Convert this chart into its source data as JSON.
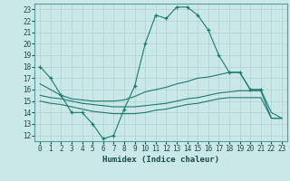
{
  "title": "",
  "xlabel": "Humidex (Indice chaleur)",
  "ylabel": "",
  "bg_color": "#cbe8e8",
  "plot_bg_color": "#cbe8e8",
  "line_color": "#1a7a6e",
  "grid_color": "#b0d0d0",
  "ylim": [
    11.5,
    23.5
  ],
  "xlim": [
    -0.5,
    23.5
  ],
  "yticks": [
    12,
    13,
    14,
    15,
    16,
    17,
    18,
    19,
    20,
    21,
    22,
    23
  ],
  "xticks": [
    0,
    1,
    2,
    3,
    4,
    5,
    6,
    7,
    8,
    9,
    10,
    11,
    12,
    13,
    14,
    15,
    16,
    17,
    18,
    19,
    20,
    21,
    22,
    23
  ],
  "lines": [
    {
      "x": [
        0,
        1,
        2,
        3,
        4,
        5,
        6,
        7,
        8,
        9,
        10,
        11,
        12,
        13,
        14,
        15,
        16,
        17,
        18,
        19,
        20,
        21
      ],
      "y": [
        18,
        17,
        15.5,
        14,
        14,
        13,
        11.7,
        12,
        14.3,
        16.3,
        20,
        22.5,
        22.2,
        23.2,
        23.2,
        22.5,
        21.2,
        19.0,
        17.5,
        17.5,
        16.0,
        16.0
      ],
      "marker": true
    },
    {
      "x": [
        0,
        1,
        2,
        3,
        4,
        5,
        6,
        7,
        8,
        9,
        10,
        11,
        12,
        13,
        14,
        15,
        16,
        17,
        18,
        19,
        20,
        21,
        22,
        23
      ],
      "y": [
        16.5,
        16.0,
        15.5,
        15.2,
        15.1,
        15.0,
        15.0,
        15.0,
        15.1,
        15.4,
        15.8,
        16.0,
        16.2,
        16.5,
        16.7,
        17.0,
        17.1,
        17.3,
        17.5,
        17.5,
        16.0,
        16.0,
        14.0,
        13.5
      ],
      "marker": false
    },
    {
      "x": [
        0,
        1,
        2,
        3,
        4,
        5,
        6,
        7,
        8,
        9,
        10,
        11,
        12,
        13,
        14,
        15,
        16,
        17,
        18,
        19,
        20,
        21,
        22,
        23
      ],
      "y": [
        15.5,
        15.3,
        15.2,
        15.0,
        14.8,
        14.7,
        14.6,
        14.5,
        14.5,
        14.5,
        14.6,
        14.7,
        14.8,
        15.0,
        15.2,
        15.3,
        15.5,
        15.7,
        15.8,
        15.9,
        15.9,
        15.9,
        13.5,
        13.5
      ],
      "marker": false
    },
    {
      "x": [
        0,
        1,
        2,
        3,
        4,
        5,
        6,
        7,
        8,
        9,
        10,
        11,
        12,
        13,
        14,
        15,
        16,
        17,
        18,
        19,
        20,
        21,
        22,
        23
      ],
      "y": [
        15.0,
        14.8,
        14.7,
        14.5,
        14.3,
        14.1,
        14.0,
        13.9,
        13.9,
        13.9,
        14.0,
        14.2,
        14.3,
        14.5,
        14.7,
        14.8,
        15.0,
        15.2,
        15.3,
        15.3,
        15.3,
        15.3,
        13.5,
        13.5
      ],
      "marker": false
    }
  ]
}
